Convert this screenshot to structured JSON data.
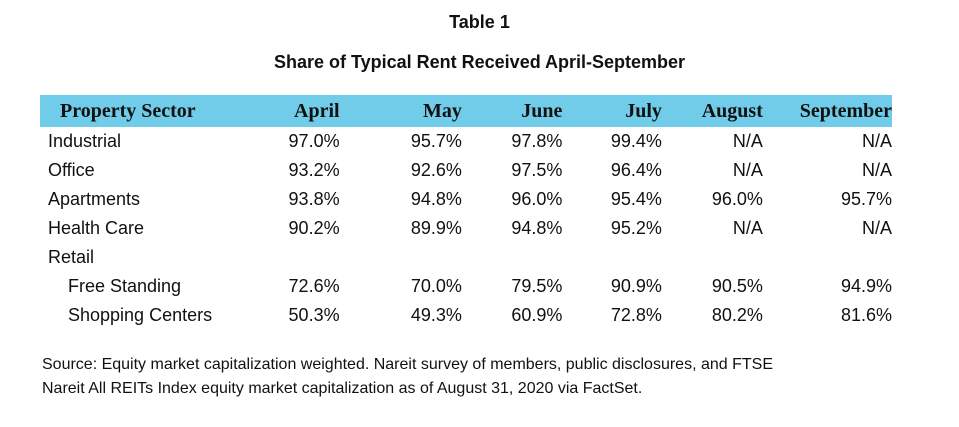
{
  "header": {
    "table_label": "Table 1",
    "title": "Share of Typical Rent Received April-September"
  },
  "table": {
    "columns": [
      "Property Sector",
      "April",
      "May",
      "June",
      "July",
      "August",
      "September"
    ],
    "rows": [
      {
        "sector": "Industrial",
        "values": [
          "97.0%",
          "95.7%",
          "97.8%",
          "99.4%",
          "N/A",
          "N/A"
        ]
      },
      {
        "sector": "Office",
        "values": [
          "93.2%",
          "92.6%",
          "97.5%",
          "96.4%",
          "N/A",
          "N/A"
        ]
      },
      {
        "sector": "Apartments",
        "values": [
          "93.8%",
          "94.8%",
          "96.0%",
          "95.4%",
          "96.0%",
          "95.7%"
        ]
      },
      {
        "sector": "Health Care",
        "values": [
          "90.2%",
          "89.9%",
          "94.8%",
          "95.2%",
          "N/A",
          "N/A"
        ]
      },
      {
        "sector": "Retail",
        "values": [
          "",
          "",
          "",
          "",
          "",
          ""
        ]
      },
      {
        "sector": "Free Standing",
        "values": [
          "72.6%",
          "70.0%",
          "79.5%",
          "90.9%",
          "90.5%",
          "94.9%"
        ]
      },
      {
        "sector": "Shopping Centers",
        "values": [
          "50.3%",
          "49.3%",
          "60.9%",
          "72.8%",
          "80.2%",
          "81.6%"
        ]
      }
    ]
  },
  "footer": {
    "source_line1": "Source: Equity market capitalization weighted. Nareit survey of members, public disclosures, and FTSE",
    "source_line2": "Nareit All REITs Index equity market capitalization as of August 31, 2020 via FactSet."
  },
  "colors": {
    "header_band": "#71cce9"
  }
}
